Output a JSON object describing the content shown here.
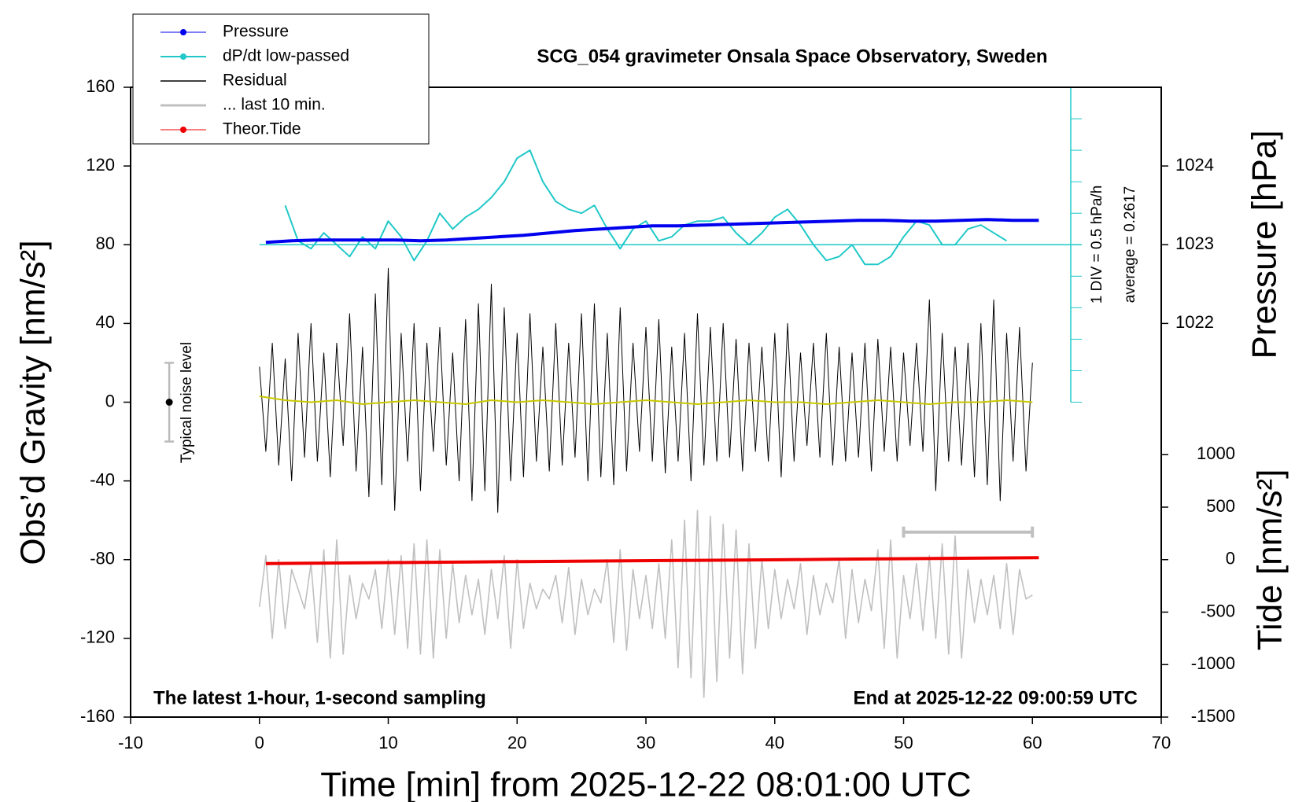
{
  "chart_data": {
    "type": "line",
    "title": "SCG_054 gravimeter Onsala Space Observatory, Sweden",
    "xlabel": "Time [min] from 2025-12-22 08:01:00 UTC",
    "ylabel": "Obs’d Gravity [nm/s²]",
    "y2label": "Pressure [hPa]",
    "y3label": "Tide [nm/s²]",
    "annotations": [
      "The latest 1-hour, 1-second sampling",
      "End at 2025-12-22 09:00:59 UTC"
    ],
    "dpdt_scale_label": "1 DIV = 0.5 hPa/h",
    "dpdt_average_label": "average = 0.2617",
    "dpdt_average": 0.2617,
    "noise_label": "Typical noise level",
    "noise": {
      "x": -7,
      "y": 0,
      "error": 20
    },
    "last10_bar": {
      "x": [
        50,
        60
      ],
      "y": -66,
      "color": "#c0c0c0"
    },
    "xlim": [
      -10,
      70
    ],
    "xticks": [
      -10,
      0,
      10,
      20,
      30,
      40,
      50,
      60,
      70
    ],
    "ylim": [
      -160,
      160
    ],
    "yticks": [
      -160,
      -120,
      -80,
      -40,
      0,
      40,
      80,
      120,
      160
    ],
    "y2lim": [
      1017,
      1025
    ],
    "y2ticks": [
      1022,
      1023,
      1024
    ],
    "y3lim": [
      -1500,
      4500
    ],
    "y3ticks": [
      -1500,
      -1000,
      -500,
      0,
      500,
      1000
    ],
    "y4lim": [
      -7.2383,
      2.7617
    ],
    "y4ticks": [
      -2.2383,
      -1.7383,
      -1.2383,
      -0.7383,
      -0.2383,
      0.2617,
      0.7617,
      1.2617,
      1.7617,
      2.2617,
      2.7617
    ],
    "x": [
      0,
      0.5,
      1,
      1.5,
      2,
      2.5,
      3,
      3.5,
      4,
      4.5,
      5,
      5.5,
      6,
      6.5,
      7,
      7.5,
      8,
      8.5,
      9,
      9.5,
      10,
      10.5,
      11,
      11.5,
      12,
      12.5,
      13,
      13.5,
      14,
      14.5,
      15,
      15.5,
      16,
      16.5,
      17,
      17.5,
      18,
      18.5,
      19,
      19.5,
      20,
      20.5,
      21,
      21.5,
      22,
      22.5,
      23,
      23.5,
      24,
      24.5,
      25,
      25.5,
      26,
      26.5,
      27,
      27.5,
      28,
      28.5,
      29,
      29.5,
      30,
      30.5,
      31,
      31.5,
      32,
      32.5,
      33,
      33.5,
      34,
      34.5,
      35,
      35.5,
      36,
      36.5,
      37,
      37.5,
      38,
      38.5,
      39,
      39.5,
      40,
      40.5,
      41,
      41.5,
      42,
      42.5,
      43,
      43.5,
      44,
      44.5,
      45,
      45.5,
      46,
      46.5,
      47,
      47.5,
      48,
      48.5,
      49,
      49.5,
      50,
      50.5,
      51,
      51.5,
      52,
      52.5,
      53,
      53.5,
      54,
      54.5,
      55,
      55.5,
      56,
      56.5,
      57,
      57.5,
      58,
      58.5,
      59,
      59.5,
      60
    ],
    "series": [
      {
        "name": "Pressure",
        "color": "#0000ee",
        "axis": "y2",
        "width": 4,
        "marker": true,
        "x": [
          0.5,
          2.5,
          4.5,
          6.5,
          8.5,
          10.5,
          12.5,
          14.5,
          16.5,
          18.5,
          20.5,
          22.5,
          24.5,
          26.5,
          28.5,
          30.5,
          32.5,
          34.5,
          36.5,
          38.5,
          40.5,
          42.5,
          44.5,
          46.5,
          48.5,
          50.5,
          52.5,
          54.5,
          56.5,
          58.5,
          60.5
        ],
        "values": [
          1023.03,
          1023.05,
          1023.06,
          1023.06,
          1023.06,
          1023.06,
          1023.05,
          1023.06,
          1023.08,
          1023.1,
          1023.12,
          1023.15,
          1023.18,
          1023.2,
          1023.22,
          1023.24,
          1023.24,
          1023.25,
          1023.26,
          1023.27,
          1023.28,
          1023.29,
          1023.3,
          1023.31,
          1023.31,
          1023.3,
          1023.3,
          1023.31,
          1023.32,
          1023.31,
          1023.31
        ]
      },
      {
        "name": "dP/dt low-passed",
        "color": "#20c8c8",
        "axis": "y4",
        "width": 2,
        "marker": true,
        "x": [
          2,
          3,
          4,
          5,
          6,
          7,
          8,
          9,
          10,
          11,
          12,
          13,
          14,
          15,
          16,
          17,
          18,
          19,
          20,
          21,
          22,
          23,
          24,
          25,
          26,
          27,
          28,
          29,
          30,
          31,
          32,
          33,
          34,
          35,
          36,
          37,
          38,
          39,
          40,
          41,
          42,
          43,
          44,
          45,
          46,
          47,
          48,
          49,
          50,
          51,
          52,
          53,
          54,
          55,
          56,
          57,
          58
        ],
        "values": [
          0.887,
          0.324,
          0.199,
          0.449,
          0.262,
          0.074,
          0.387,
          0.199,
          0.637,
          0.387,
          0.012,
          0.324,
          0.762,
          0.512,
          0.699,
          0.824,
          1.012,
          1.262,
          1.637,
          1.762,
          1.262,
          0.949,
          0.824,
          0.762,
          0.887,
          0.512,
          0.199,
          0.512,
          0.637,
          0.324,
          0.387,
          0.574,
          0.637,
          0.637,
          0.699,
          0.449,
          0.262,
          0.449,
          0.699,
          0.824,
          0.574,
          0.262,
          0.012,
          0.074,
          0.262,
          -0.051,
          -0.051,
          0.074,
          0.387,
          0.637,
          0.574,
          0.262,
          0.262,
          0.512,
          0.574,
          0.449,
          0.324
        ]
      },
      {
        "name": "Residual",
        "color": "#000000",
        "width": 1,
        "values": [
          18,
          -25,
          30,
          -32,
          22,
          -40,
          35,
          -28,
          40,
          -30,
          25,
          -38,
          30,
          -22,
          45,
          -35,
          28,
          -48,
          55,
          -42,
          68,
          -55,
          35,
          -30,
          40,
          -45,
          30,
          -25,
          38,
          -32,
          25,
          -40,
          42,
          -50,
          50,
          -45,
          60,
          -56,
          48,
          -40,
          35,
          -38,
          45,
          -30,
          28,
          -35,
          40,
          -32,
          30,
          -28,
          45,
          -40,
          50,
          -38,
          35,
          -42,
          48,
          -35,
          30,
          -25,
          38,
          -30,
          42,
          -36,
          28,
          -30,
          35,
          -40,
          45,
          -32,
          38,
          -30,
          40,
          -28,
          32,
          -35,
          30,
          -25,
          28,
          -30,
          35,
          -38,
          40,
          -30,
          25,
          -22,
          30,
          -28,
          35,
          -32,
          28,
          -30,
          25,
          -28,
          30,
          -35,
          32,
          -25,
          28,
          -30,
          25,
          -22,
          30,
          -25,
          52,
          -45,
          35,
          -30,
          28,
          -32,
          30,
          -38,
          40,
          -42,
          52,
          -50,
          35,
          -30,
          38,
          -35,
          20
        ]
      },
      {
        "name": "... last 10 min.",
        "color": "#c0c0c0",
        "width": 1.6,
        "values": [
          -104,
          -78,
          -120,
          -80,
          -115,
          -85,
          -95,
          -105,
          -82,
          -122,
          -75,
          -130,
          -70,
          -128,
          -88,
          -110,
          -92,
          -100,
          -85,
          -115,
          -80,
          -118,
          -78,
          -125,
          -72,
          -128,
          -70,
          -130,
          -75,
          -120,
          -82,
          -112,
          -88,
          -108,
          -90,
          -118,
          -85,
          -110,
          -78,
          -125,
          -80,
          -115,
          -92,
          -105,
          -95,
          -100,
          -88,
          -112,
          -84,
          -118,
          -90,
          -108,
          -95,
          -102,
          -80,
          -122,
          -75,
          -126,
          -85,
          -110,
          -88,
          -115,
          -82,
          -120,
          -70,
          -135,
          -60,
          -140,
          -55,
          -150,
          -58,
          -142,
          -62,
          -130,
          -65,
          -138,
          -72,
          -125,
          -80,
          -115,
          -85,
          -110,
          -90,
          -105,
          -82,
          -118,
          -88,
          -108,
          -92,
          -102,
          -80,
          -120,
          -85,
          -112,
          -90,
          -106,
          -75,
          -125,
          -70,
          -130,
          -88,
          -110,
          -82,
          -116,
          -78,
          -120,
          -72,
          -128,
          -68,
          -130,
          -85,
          -112,
          -90,
          -108,
          -88,
          -115,
          -82,
          -118,
          -85,
          -100,
          -98
        ]
      },
      {
        "name": "Theor.Tide",
        "color": "#ee0000",
        "axis": "y3",
        "width": 4,
        "marker": true,
        "x": [
          0.5,
          4.5,
          8.5,
          12.5,
          16.5,
          20.5,
          24.5,
          28.5,
          32.5,
          36.5,
          40.5,
          44.5,
          48.5,
          52.5,
          56.5,
          60.5
        ],
        "values": [
          -37,
          -33,
          -30,
          -26,
          -22,
          -18,
          -15,
          -11,
          -8,
          -5,
          -1,
          3,
          7,
          11,
          15,
          19
        ]
      },
      {
        "color": "#c8c800",
        "width": 2,
        "x": [
          0,
          2,
          4,
          6,
          8,
          10,
          12,
          14,
          16,
          18,
          20,
          22,
          24,
          26,
          28,
          30,
          32,
          34,
          36,
          38,
          40,
          42,
          44,
          46,
          48,
          50,
          52,
          54,
          56,
          58,
          60
        ],
        "values": [
          3,
          1,
          0,
          1,
          -1,
          0,
          1,
          0,
          -1,
          1,
          0,
          1,
          0,
          -1,
          0,
          1,
          0,
          -1,
          0,
          1,
          0,
          0,
          -1,
          0,
          1,
          0,
          -1,
          0,
          0,
          1,
          0
        ]
      }
    ]
  }
}
